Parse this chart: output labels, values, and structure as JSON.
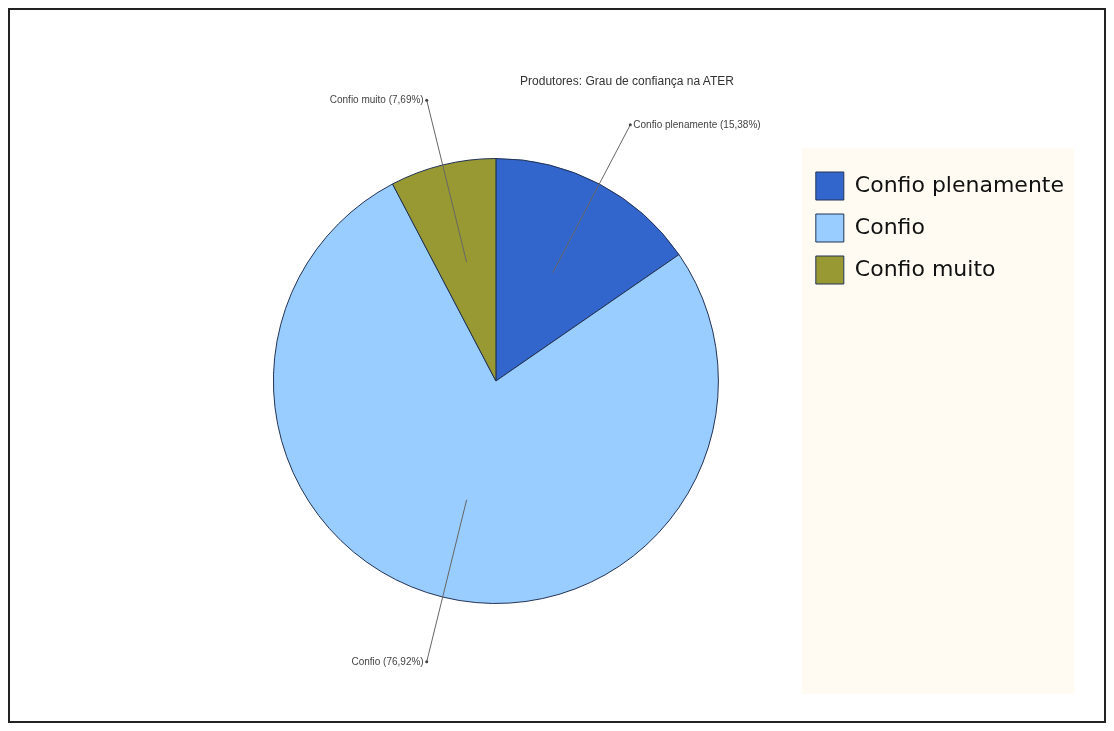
{
  "chart_data": {
    "type": "pie",
    "title": "Produtores: Grau de confiança na ATER",
    "categories": [
      "Confio plenamente",
      "Confio",
      "Confio muito"
    ],
    "values": [
      15.38,
      76.92,
      7.69
    ],
    "colors": [
      "#3366cc",
      "#99ccff",
      "#999933"
    ],
    "value_labels": [
      "Confio plenamente (15,38%)",
      "Confio (76,92%)",
      "Confio muito (7,69%)"
    ],
    "legend": "right"
  }
}
